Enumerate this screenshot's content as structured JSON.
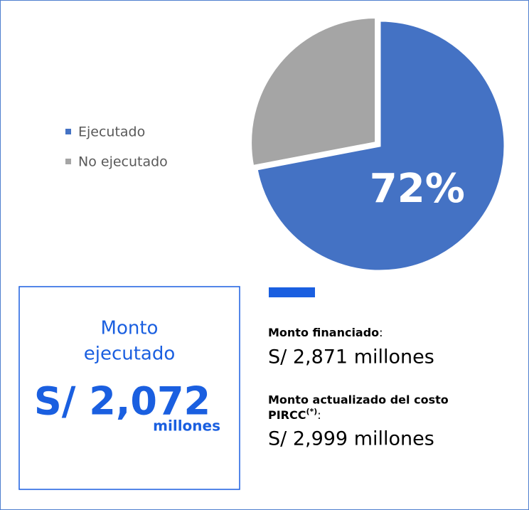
{
  "chart_data": {
    "type": "pie",
    "categories": [
      "Ejecutado",
      "No ejecutado"
    ],
    "values": [
      72,
      28
    ],
    "value_labels": [
      "72%",
      null
    ],
    "colors": [
      "#4472c4",
      "#a5a5a5"
    ]
  },
  "summary_box": {
    "title_line1": "Monto",
    "title_line2": "ejecutado",
    "amount": "S/ 2,072",
    "unit": "millones"
  },
  "details": [
    {
      "label": "Monto financiado",
      "separator": ":",
      "value": "S/ 2,871 millones"
    },
    {
      "label": "Monto actualizado del costo",
      "label_line2": "PIRCC",
      "note": "(*)",
      "separator": ":",
      "value": "S/ 2,999 millones"
    }
  ]
}
